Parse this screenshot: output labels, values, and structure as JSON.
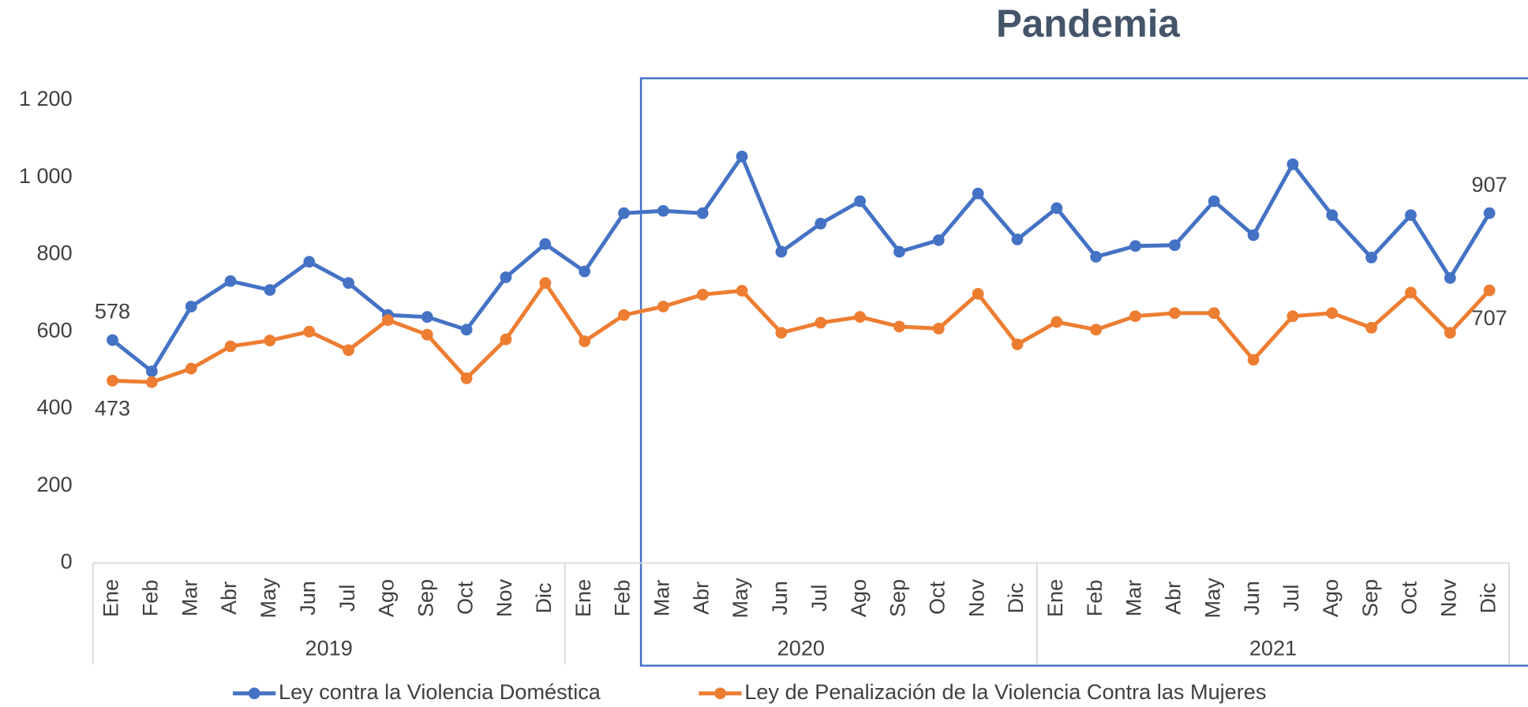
{
  "chart_data": {
    "type": "line",
    "title": "Pandemia",
    "categories": [
      "Ene",
      "Feb",
      "Mar",
      "Abr",
      "May",
      "Jun",
      "Jul",
      "Ago",
      "Sep",
      "Oct",
      "Nov",
      "Dic",
      "Ene",
      "Feb",
      "Mar",
      "Abr",
      "May",
      "Jun",
      "Jul",
      "Ago",
      "Sep",
      "Oct",
      "Nov",
      "Dic",
      "Ene",
      "Feb",
      "Mar",
      "Abr",
      "May",
      "Jun",
      "Jul",
      "Ago",
      "Sep",
      "Oct",
      "Nov",
      "Dic"
    ],
    "years": [
      "2019",
      "2020",
      "2021"
    ],
    "series": [
      {
        "name": "Ley contra la Violencia Doméstica",
        "color": "#4472c4",
        "values": [
          578,
          497,
          665,
          731,
          708,
          781,
          726,
          643,
          638,
          605,
          741,
          827,
          756,
          907,
          913,
          907,
          1054,
          807,
          880,
          938,
          807,
          837,
          958,
          839,
          920,
          794,
          822,
          824,
          938,
          850,
          1034,
          902,
          792,
          902,
          739,
          907
        ]
      },
      {
        "name": "Ley de Penalización de la Violencia Contra las Mujeres",
        "color": "#ed7d31",
        "values": [
          473,
          469,
          504,
          562,
          577,
          600,
          552,
          630,
          592,
          479,
          580,
          726,
          575,
          643,
          665,
          696,
          706,
          597,
          623,
          638,
          613,
          608,
          698,
          567,
          625,
          605,
          640,
          648,
          648,
          527,
          640,
          648,
          610,
          701,
          597,
          707
        ]
      }
    ],
    "ylim": [
      0,
      1200
    ],
    "yticks": [
      0,
      200,
      400,
      600,
      800,
      {
        "value": 1000,
        "label": "1 000"
      },
      {
        "value": 1200,
        "label": "1 200"
      }
    ],
    "grid": false,
    "legend": "bottom"
  }
}
